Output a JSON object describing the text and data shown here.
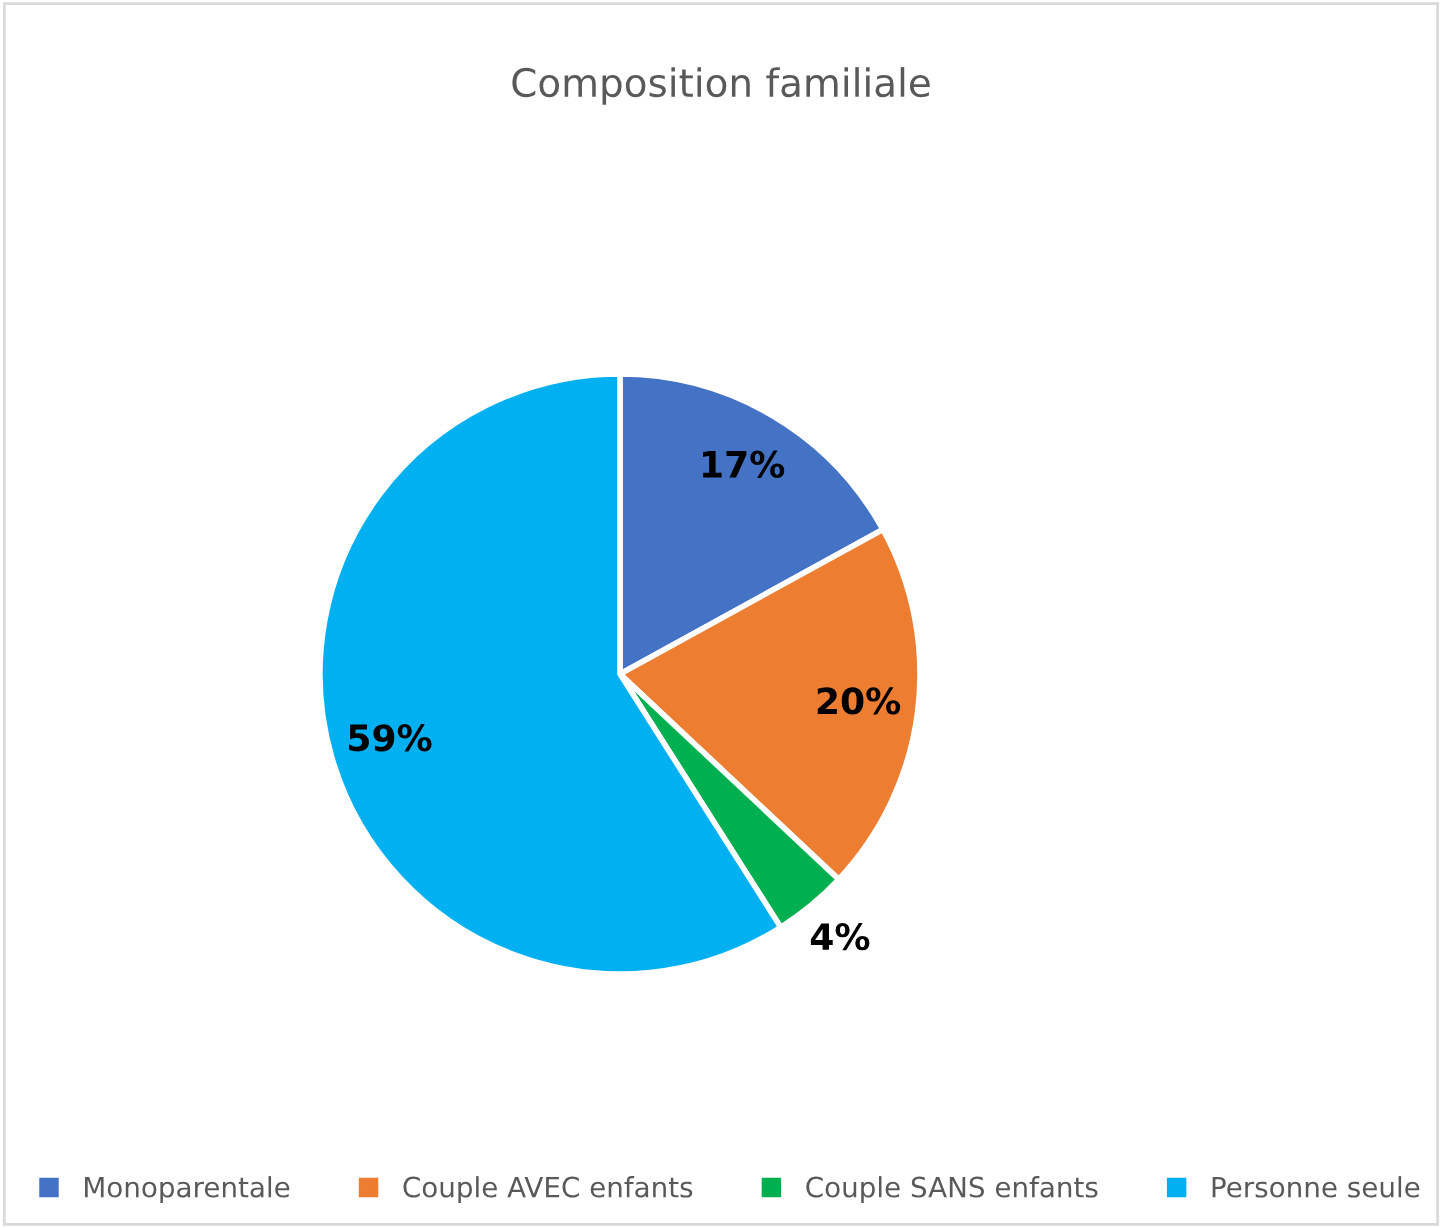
{
  "chart_data": {
    "type": "pie",
    "title": "Composition familiale",
    "categories": [
      "Monoparentale",
      "Couple AVEC enfants",
      "Couple SANS enfants",
      "Personne seule"
    ],
    "values": [
      17,
      20,
      4,
      59
    ],
    "colors": [
      "#4472c4",
      "#ed7d31",
      "#00b050",
      "#00b0f0"
    ],
    "value_labels": [
      "17%",
      "20%",
      "4%",
      "59%"
    ],
    "legend": "bottom"
  }
}
